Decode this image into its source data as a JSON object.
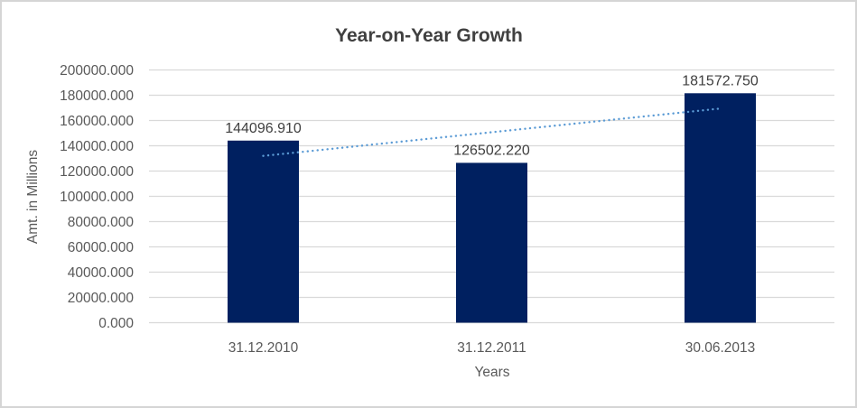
{
  "chart_data": {
    "type": "bar",
    "title": "Year-on-Year Growth",
    "xlabel": "Years",
    "ylabel": "Amt. in Millions",
    "categories": [
      "31.12.2010",
      "31.12.2011",
      "30.06.2013"
    ],
    "values": [
      144096.91,
      126502.22,
      181572.75
    ],
    "value_labels": [
      "144096.910",
      "126502.220",
      "181572.750"
    ],
    "ylim": [
      0,
      200000
    ],
    "ytick_step": 20000,
    "y_tick_labels": [
      "0.000",
      "20000.000",
      "40000.000",
      "60000.000",
      "80000.000",
      "100000.000",
      "120000.000",
      "140000.000",
      "160000.000",
      "180000.000",
      "200000.000"
    ],
    "grid": true,
    "legend_position": "none",
    "trendline": {
      "type": "linear",
      "style": "dotted"
    },
    "colors": {
      "bar": "#002060",
      "trendline": "#5b9bd5",
      "gridline": "#d9d9d9",
      "tick_text": "#595959",
      "axis_title_text": "#595959",
      "title_text": "#404040",
      "data_label_text": "#404040",
      "frame_border": "#d5d5d5",
      "background": "#ffffff"
    }
  }
}
